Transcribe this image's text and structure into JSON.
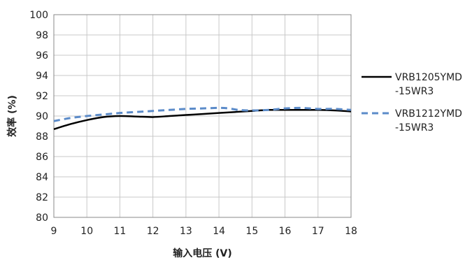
{
  "chart_data": {
    "type": "line",
    "xlabel": "输入电压 (V)",
    "ylabel": "效率 (%)",
    "xlim": [
      9,
      18
    ],
    "ylim": [
      80,
      100
    ],
    "x_ticks": [
      "9",
      "10",
      "11",
      "12",
      "13",
      "14",
      "15",
      "16",
      "17",
      "18"
    ],
    "y_ticks": [
      "80",
      "82",
      "84",
      "86",
      "88",
      "90",
      "92",
      "94",
      "96",
      "98",
      "100"
    ],
    "grid": true,
    "legend_position": "right",
    "series": [
      {
        "name": "VRB1205YMD\n-15WR3",
        "legend_lines": [
          "VRB1205YMD",
          "-15WR3"
        ],
        "color": "#000000",
        "style": "solid",
        "x": [
          9,
          9.5,
          10,
          10.5,
          11,
          11.5,
          12,
          12.5,
          13,
          13.5,
          14,
          14.5,
          15,
          15.5,
          16,
          16.5,
          17,
          17.5,
          18
        ],
        "values": [
          88.7,
          89.2,
          89.6,
          89.9,
          90.0,
          89.95,
          89.9,
          90.0,
          90.1,
          90.2,
          90.3,
          90.4,
          90.5,
          90.6,
          90.6,
          90.6,
          90.6,
          90.55,
          90.45
        ]
      },
      {
        "name": "VRB1212YMD\n-15WR3",
        "legend_lines": [
          "VRB1212YMD",
          "-15WR3"
        ],
        "color": "#5B8BC9",
        "style": "dashed",
        "x": [
          9,
          9.5,
          10,
          10.5,
          11,
          11.5,
          12,
          12.5,
          13,
          13.5,
          14,
          14.3,
          14.6,
          15,
          15.5,
          16,
          16.5,
          17,
          17.5,
          18
        ],
        "values": [
          89.5,
          89.8,
          90.0,
          90.15,
          90.3,
          90.4,
          90.5,
          90.6,
          90.7,
          90.75,
          90.8,
          90.75,
          90.6,
          90.55,
          90.6,
          90.75,
          90.8,
          90.7,
          90.7,
          90.6
        ]
      }
    ]
  }
}
